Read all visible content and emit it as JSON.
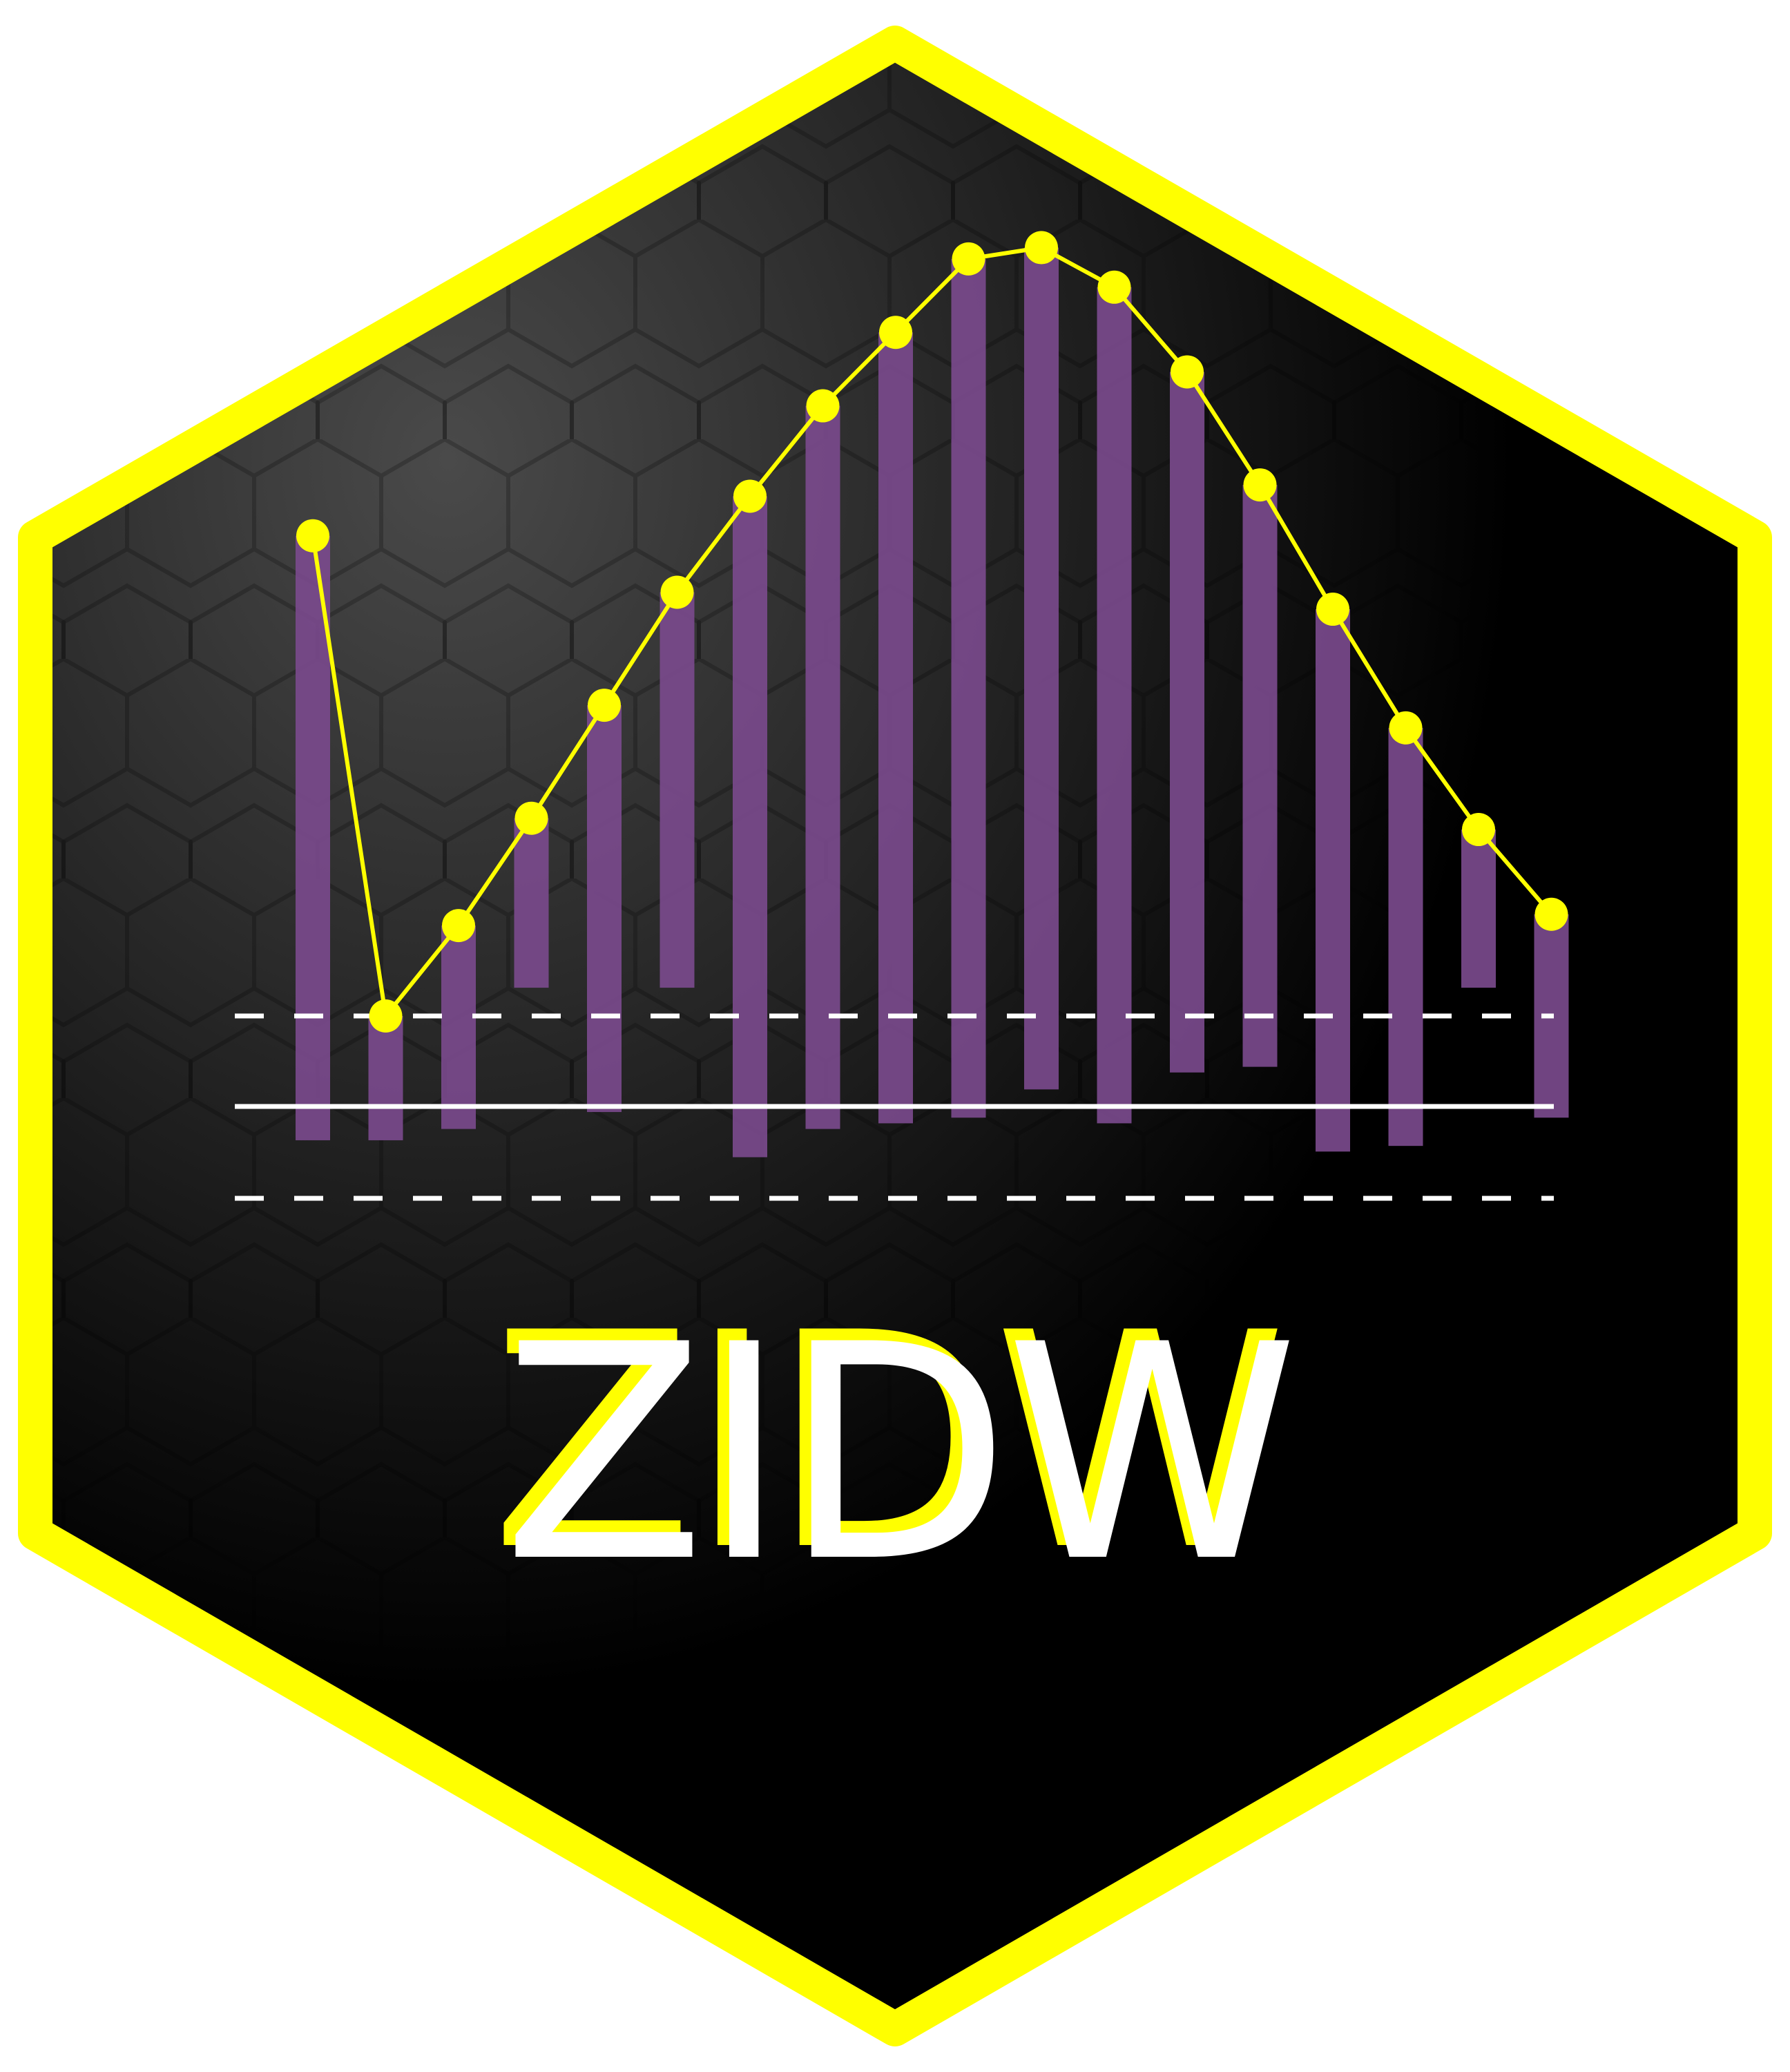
{
  "logo": {
    "wordmark": "ZIDW",
    "colors": {
      "border": "#ffff00",
      "background_dark": "#000000",
      "background_light": "#4a4a4a",
      "bars": "#7a4a8c",
      "line": "#ffff00",
      "reference_lines": "#ffffff",
      "wordmark_fill": "#ffffff",
      "wordmark_shadow": "#ffff00"
    }
  },
  "chart_data": {
    "type": "bar",
    "series": [
      {
        "kind": "bar-top",
        "values": [
          0.85,
          0.0,
          0.16,
          0.35,
          0.55,
          0.75,
          0.92,
          1.08,
          1.21,
          1.34,
          1.36,
          1.29,
          1.14,
          0.94,
          0.72,
          0.51,
          0.33,
          0.18
        ]
      },
      {
        "kind": "bar-bottom",
        "values": [
          -0.22,
          -0.22,
          -0.2,
          0.05,
          -0.17,
          0.05,
          -0.25,
          -0.2,
          -0.19,
          -0.18,
          -0.13,
          -0.19,
          -0.1,
          -0.09,
          -0.24,
          -0.23,
          0.05,
          -0.18
        ]
      }
    ],
    "baseline": -0.16,
    "upper_dashed": 0.0,
    "lower_dashed": -0.32,
    "grid": false,
    "legend": "none"
  }
}
